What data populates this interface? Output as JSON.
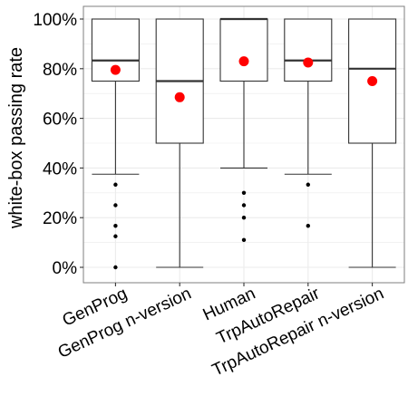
{
  "chart_data": {
    "type": "box",
    "title": "",
    "xlabel": "",
    "ylabel": "white-box passing rate",
    "ylim": [
      0,
      100
    ],
    "yticks": [
      "0%",
      "20%",
      "40%",
      "60%",
      "80%",
      "100%"
    ],
    "grid": true,
    "categories": [
      "GenProg",
      "GenProg n-version",
      "Human",
      "TrpAutoRepair",
      "TrpAutoRepair n-version"
    ],
    "boxes": [
      {
        "name": "GenProg",
        "whisker_low": 37.5,
        "q1": 75,
        "median": 83.3,
        "q3": 100,
        "whisker_high": 100,
        "mean": 79.5,
        "outliers": [
          33.3,
          25,
          16.7,
          12.5,
          0
        ]
      },
      {
        "name": "GenProg n-version",
        "whisker_low": 0,
        "q1": 50,
        "median": 75,
        "q3": 100,
        "whisker_high": 100,
        "mean": 68.5,
        "outliers": []
      },
      {
        "name": "Human",
        "whisker_low": 40,
        "q1": 75,
        "median": 100,
        "q3": 100,
        "whisker_high": 100,
        "mean": 83,
        "outliers": [
          30,
          25,
          20,
          11
        ]
      },
      {
        "name": "TrpAutoRepair",
        "whisker_low": 37.5,
        "q1": 75,
        "median": 83.3,
        "q3": 100,
        "whisker_high": 100,
        "mean": 82.5,
        "outliers": [
          33.3,
          16.7
        ]
      },
      {
        "name": "TrpAutoRepair n-version",
        "whisker_low": 0,
        "q1": 50,
        "median": 80,
        "q3": 100,
        "whisker_high": 100,
        "mean": 75,
        "outliers": []
      }
    ],
    "colors": {
      "mean": "#ff0000",
      "box": "#333333",
      "grid": "#ebebeb",
      "panel_border": "#7f7f7f",
      "outlier": "#000000"
    }
  }
}
